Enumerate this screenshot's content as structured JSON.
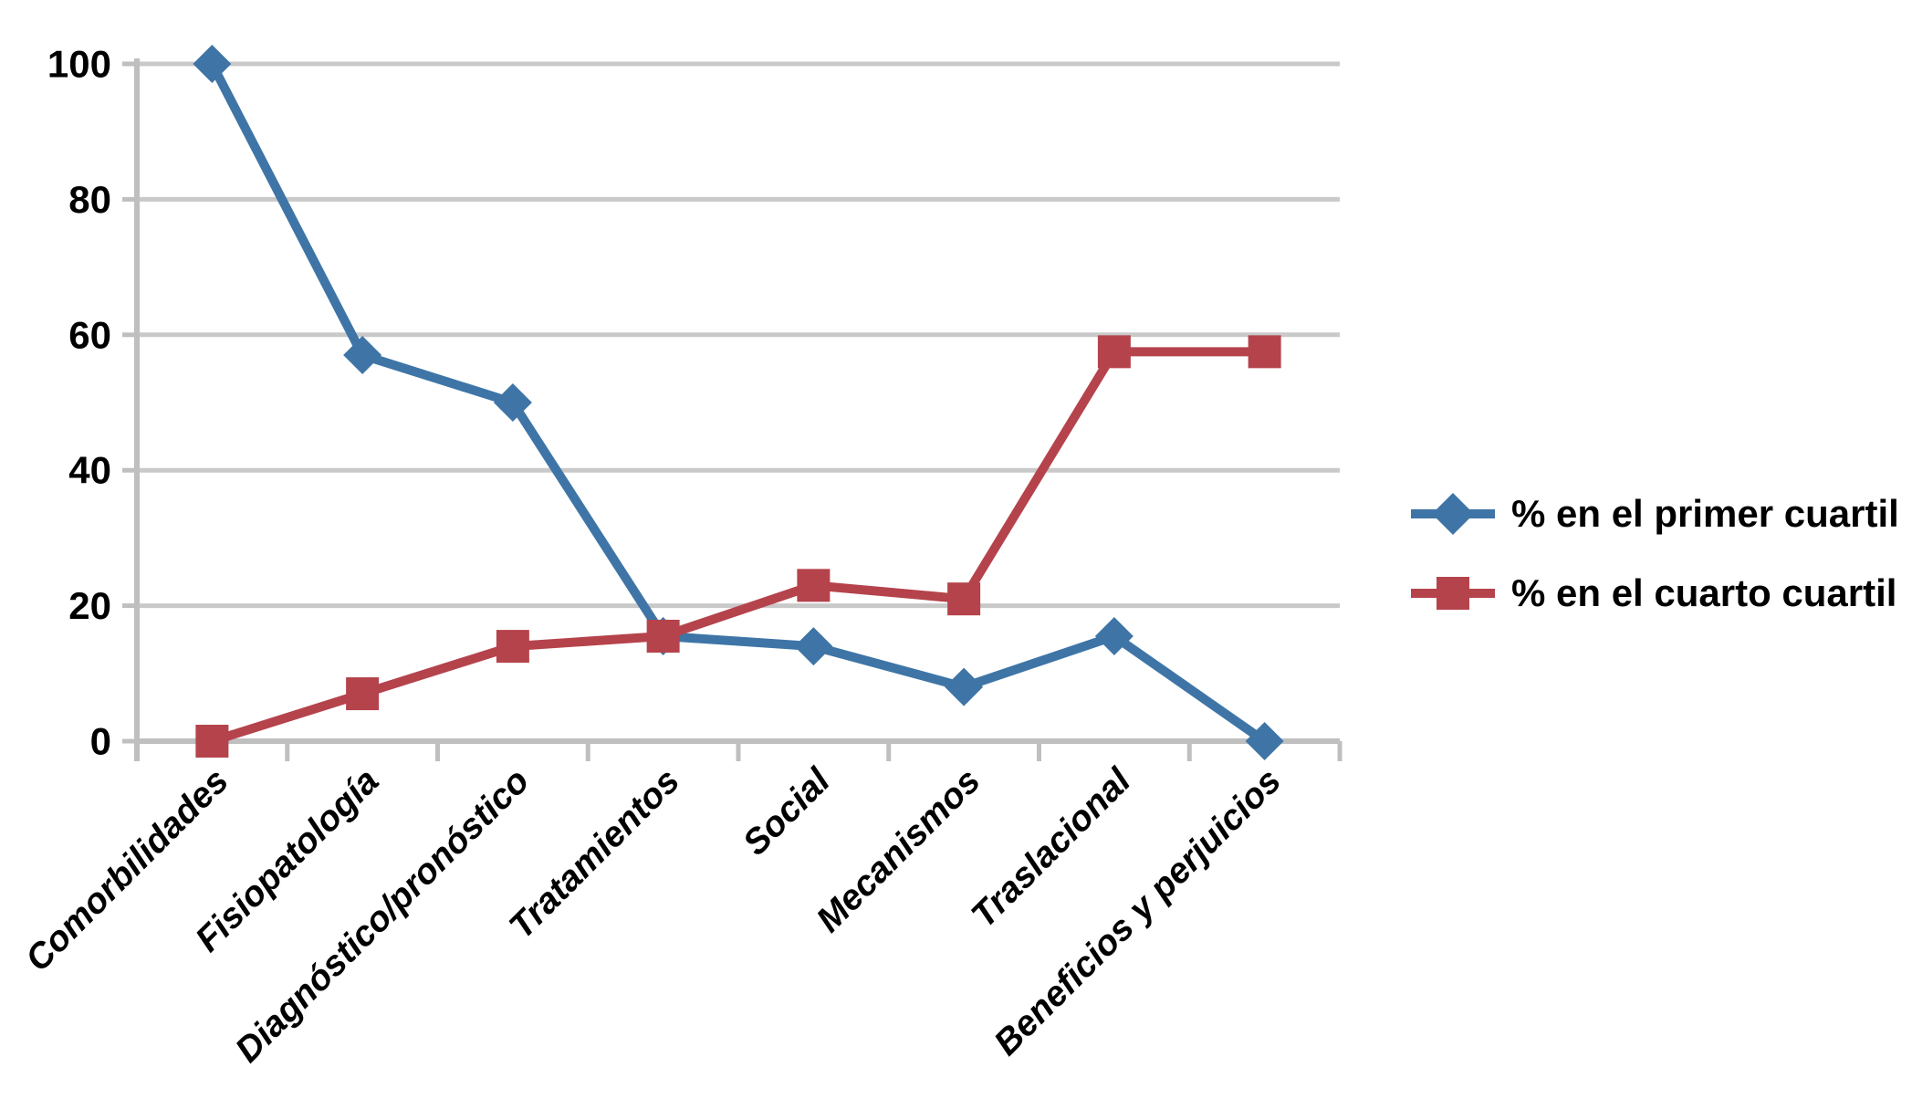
{
  "chart_data": {
    "type": "line",
    "title": "",
    "xlabel": "",
    "ylabel": "",
    "categories": [
      "Comorbilidades",
      "Fisiopatología",
      "Diagnóstico/pronóstico",
      "Tratamientos",
      "Social",
      "Mecanismos",
      "Traslacional",
      "Beneficios y perjuicios"
    ],
    "series": [
      {
        "name": "% en el primer cuartil",
        "marker": "diamond",
        "color": "#3F75A6",
        "values": [
          100,
          57,
          50,
          15.5,
          14,
          8,
          15.5,
          0
        ]
      },
      {
        "name": "% en el cuarto cuartil",
        "marker": "square",
        "color": "#B5434C",
        "values": [
          0,
          7,
          14,
          15.5,
          23,
          21,
          57.5,
          57.5
        ]
      }
    ],
    "y_ticks": [
      0,
      20,
      40,
      60,
      80,
      100
    ],
    "ylim": [
      0,
      100
    ],
    "grid": "horizontal",
    "gridline_color": "#C9C9C9",
    "axis_color": "#BFBFBF",
    "text_color": "#000000",
    "legend_position": "right-middle"
  }
}
